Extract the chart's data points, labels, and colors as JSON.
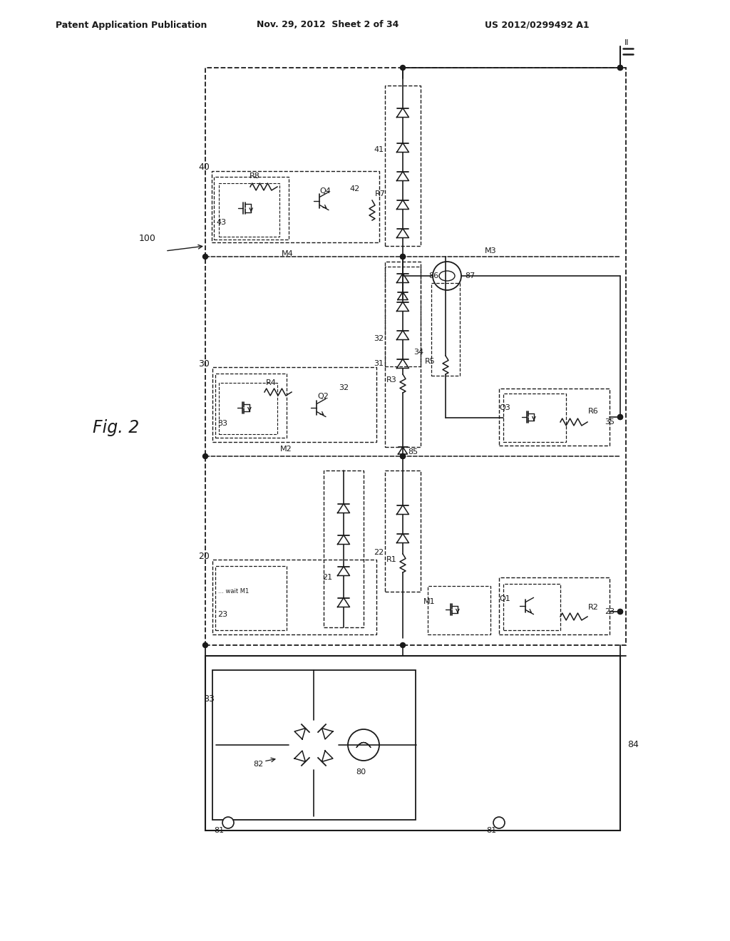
{
  "header_left": "Patent Application Publication",
  "header_mid": "Nov. 29, 2012  Sheet 2 of 34",
  "header_right": "US 2012/0299492 A1",
  "fig_label": "Fig. 2",
  "bg_color": "#ffffff",
  "lc": "#1a1a1a"
}
